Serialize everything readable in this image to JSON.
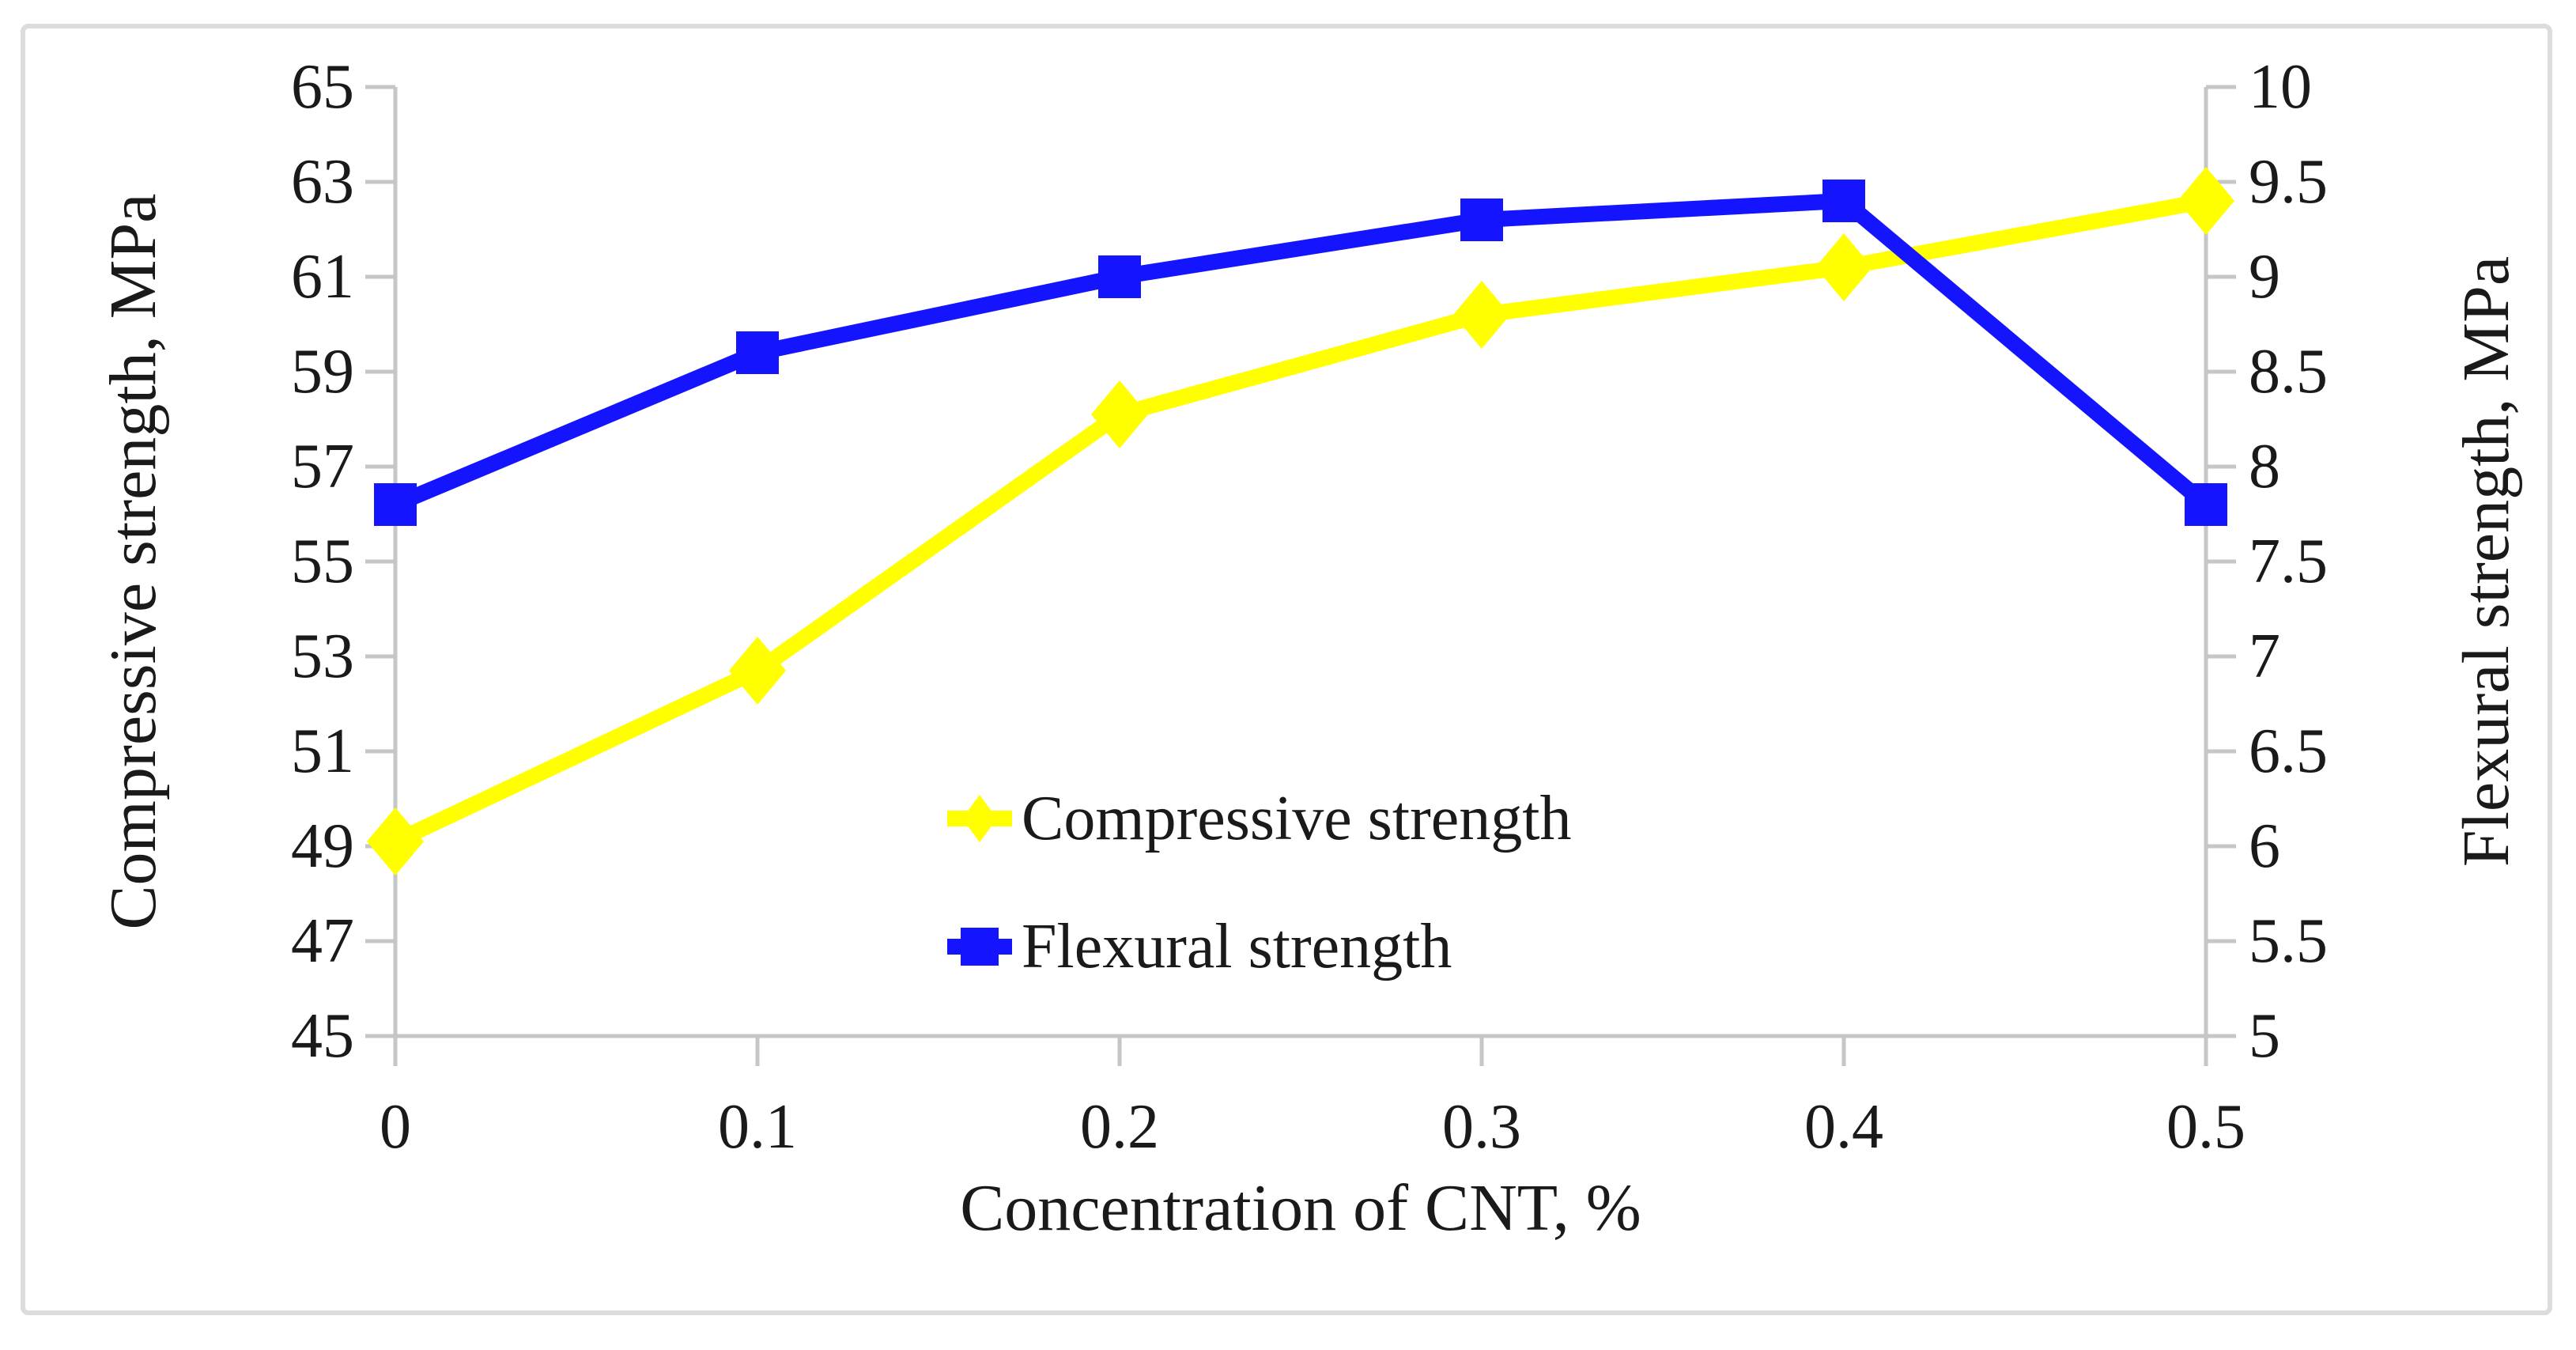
{
  "chart_data": {
    "type": "line",
    "title": "",
    "x": [
      0,
      0.1,
      0.2,
      0.3,
      0.4,
      0.5
    ],
    "x_tick_labels": [
      "0",
      "0.1",
      "0.2",
      "0.3",
      "0.4",
      "0.5"
    ],
    "series": [
      {
        "name": "Compressive strength",
        "axis": "left",
        "color": "#ffff00",
        "marker": "diamond",
        "values": [
          49.1,
          52.7,
          58.1,
          60.2,
          61.2,
          62.6
        ]
      },
      {
        "name": "Flexural strength",
        "axis": "right",
        "color": "#1414ff",
        "marker": "square",
        "values": [
          7.8,
          8.6,
          9.0,
          9.3,
          9.4,
          7.8
        ]
      }
    ],
    "x_axis": {
      "title": "Concentration of CNT, %"
    },
    "left_axis": {
      "title": "Compressive strength, MPa",
      "min": 45,
      "max": 65,
      "tick_step": 2,
      "tick_labels": [
        "65",
        "63",
        "61",
        "59",
        "57",
        "55",
        "53",
        "51",
        "49",
        "47",
        "45"
      ]
    },
    "right_axis": {
      "title": "Flexural strength, MPa",
      "min": 5,
      "max": 10,
      "tick_step": 0.5,
      "tick_labels": [
        "10",
        "9.5",
        "9",
        "8.5",
        "8",
        "7.5",
        "7",
        "6.5",
        "6",
        "5.5",
        "5"
      ]
    },
    "legend": {
      "position": "inside-lower-center",
      "items": [
        {
          "label": "Compressive strength",
          "marker": "diamond",
          "color": "#ffff00"
        },
        {
          "label": "Flexural strength",
          "marker": "square",
          "color": "#1414ff"
        }
      ]
    },
    "grid": false,
    "axis_color": "#c6c6c6",
    "text_color": "#1a1a1a",
    "background_color": "#ffffff"
  }
}
